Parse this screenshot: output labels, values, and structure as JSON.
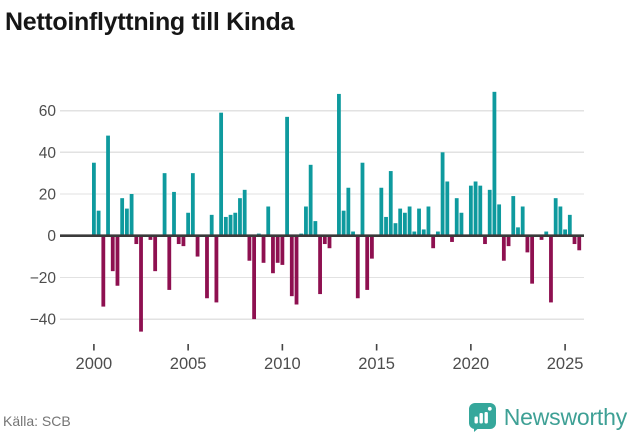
{
  "title": "Nettoinflyttning till Kinda",
  "source": "Källa: SCB",
  "brand": {
    "name": "Newsworthy"
  },
  "colors": {
    "positive": "#0E9A9E",
    "negative": "#8E1050",
    "zero_line": "#3A3A3A",
    "grid": "#E2E2E2",
    "axis_text": "#4D4D4D",
    "tick_mark": "#444444",
    "title_text": "#161616",
    "source_text": "#757575",
    "brand_teal": "#3EA095",
    "background": "#FFFFFF"
  },
  "chart_data": {
    "type": "bar",
    "title": "Nettoinflyttning till Kinda",
    "x_unit": "quarter",
    "start_year": 2000,
    "quarters_per_year": 4,
    "start": "2000Q1",
    "end": "2025Q4",
    "ylim": [
      -50,
      72
    ],
    "grid": true,
    "yticks": [
      -40,
      -20,
      0,
      20,
      40,
      60
    ],
    "xticks": [
      2000,
      2005,
      2010,
      2015,
      2020,
      2025
    ],
    "values": [
      35,
      12,
      -34,
      48,
      -17,
      -24,
      18,
      13,
      20,
      -4,
      -46,
      0,
      -2,
      -17,
      0,
      30,
      -26,
      21,
      -4,
      -5,
      11,
      30,
      -10,
      0,
      -30,
      10,
      -32,
      59,
      9,
      10,
      11,
      18,
      22,
      -12,
      -40,
      1,
      -13,
      14,
      -18,
      -13,
      -14,
      57,
      -29,
      -33,
      1,
      14,
      34,
      7,
      -28,
      -4,
      -6,
      0,
      68,
      12,
      23,
      2,
      -30,
      35,
      -26,
      -11,
      0,
      23,
      9,
      31,
      6,
      13,
      11,
      14,
      2,
      13,
      3,
      14,
      -6,
      2,
      40,
      26,
      -3,
      18,
      11,
      0,
      24,
      26,
      24,
      -4,
      22,
      69,
      15,
      -12,
      -5,
      19,
      4,
      14,
      -8,
      -23,
      0,
      -2,
      2,
      -32,
      18,
      14,
      3,
      10,
      -4,
      -7
    ]
  }
}
